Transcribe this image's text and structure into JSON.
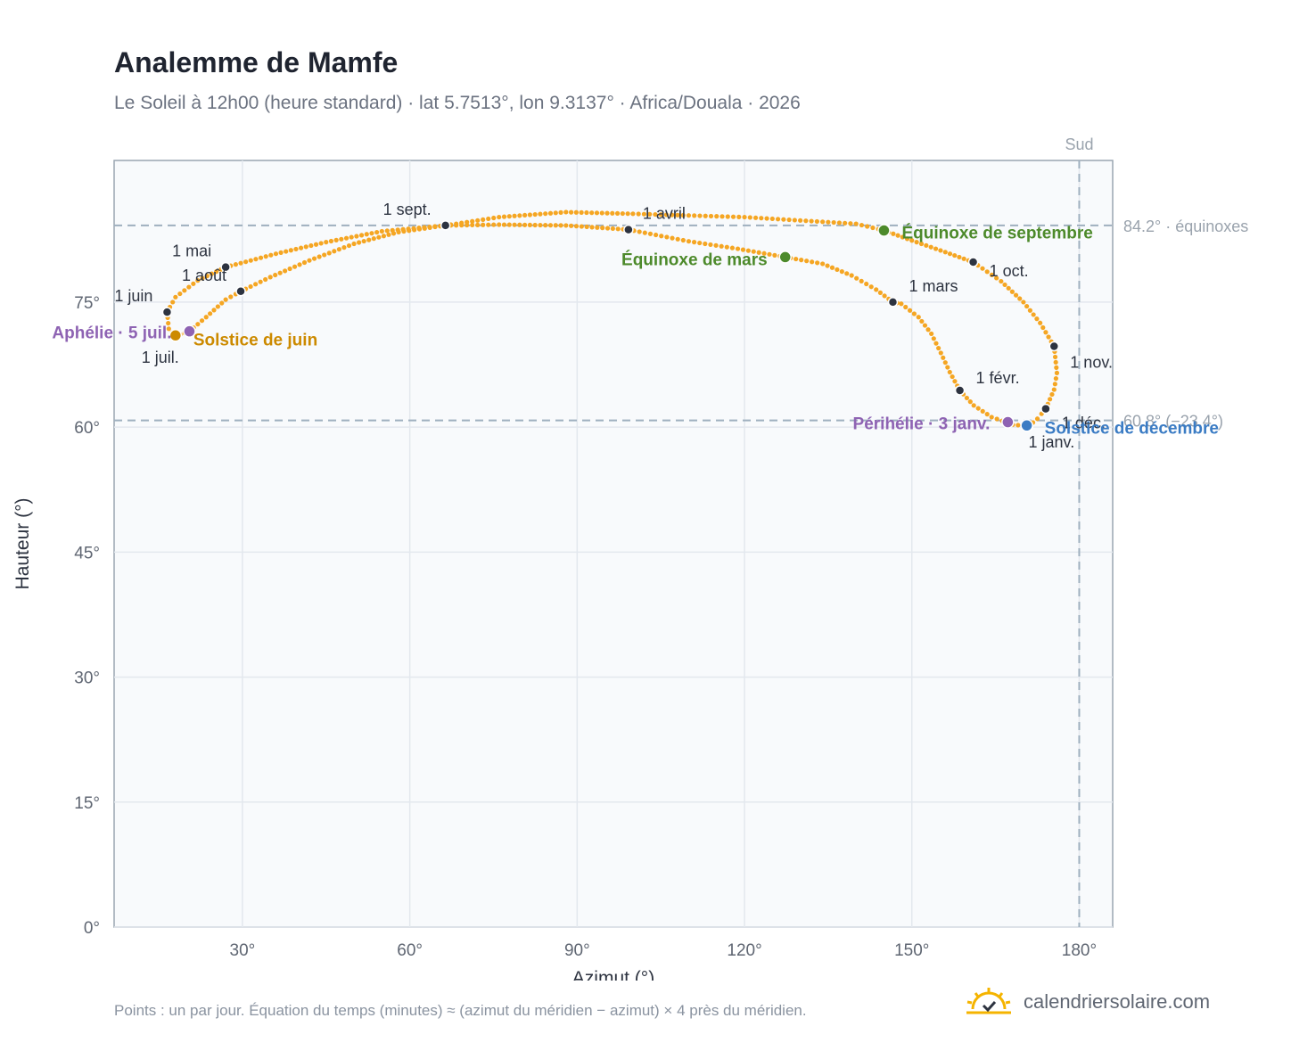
{
  "title": "Analemme de Mamfe",
  "subtitle": "Le Soleil à 12h00 (heure standard) · lat 5.7513°, lon 9.3137° · Africa/Douala · 2026",
  "footnote": "Points : un par jour. Équation du temps (minutes) ≈ (azimut du méridien − azimut) × 4 près du méridien.",
  "brand": {
    "name": "calendriersolaire.com",
    "logo_icon": "sun-check-icon"
  },
  "colors": {
    "curve": "#f5a623",
    "month": "#2d3340",
    "equinox": "#4d8a2b",
    "june": "#cc8a00",
    "december": "#3b7cc4",
    "apsis": "#8e63b3",
    "guide": "#9fb0bf",
    "grid": "#e3e8ee",
    "plot_bg": "#f8fafc"
  },
  "chart_data": {
    "type": "scatter",
    "xlabel": "Azimut (°)",
    "ylabel": "Hauteur (°)",
    "xlim": [
      7,
      186
    ],
    "ylim": [
      0,
      92
    ],
    "x_ticks": [
      30,
      60,
      90,
      120,
      150,
      180
    ],
    "x_tick_labels": [
      "30°",
      "60°",
      "90°",
      "120°",
      "150°",
      "180°"
    ],
    "y_ticks": [
      0,
      15,
      30,
      45,
      60,
      75
    ],
    "y_tick_labels": [
      "0°",
      "15°",
      "30°",
      "45°",
      "60°",
      "75°"
    ],
    "grid": true,
    "south_line": {
      "azimuth": 180,
      "label": "Sud"
    },
    "h_guides": [
      {
        "y": 84.2,
        "label": "84.2° · équinoxes"
      },
      {
        "y": 60.8,
        "label": "60.8° (−23.4°)"
      }
    ],
    "series": [
      {
        "style": "daily-points",
        "points": [
          [
            170.9,
            60.1
          ],
          [
            168.1,
            60.3
          ],
          [
            164.3,
            61.2
          ],
          [
            161.1,
            62.6
          ],
          [
            158.6,
            64.4
          ],
          [
            156.8,
            66.6
          ],
          [
            155.2,
            68.9
          ],
          [
            153.5,
            71.2
          ],
          [
            151.2,
            73.2
          ],
          [
            148.1,
            74.8
          ],
          [
            146.6,
            75.0
          ],
          [
            143.6,
            76.5
          ],
          [
            139.2,
            78.2
          ],
          [
            134.0,
            79.6
          ],
          [
            127.3,
            80.4
          ],
          [
            118.8,
            81.4
          ],
          [
            110.0,
            82.3
          ],
          [
            99.2,
            83.7
          ],
          [
            88.0,
            84.2
          ],
          [
            76.0,
            84.3
          ],
          [
            66.4,
            84.2
          ],
          [
            55.0,
            83.5
          ],
          [
            45.0,
            82.2
          ],
          [
            36.0,
            80.8
          ],
          [
            27.0,
            79.2
          ],
          [
            22.0,
            77.6
          ],
          [
            18.0,
            75.6
          ],
          [
            16.5,
            73.8
          ],
          [
            16.8,
            71.8
          ],
          [
            18.0,
            70.9
          ],
          [
            20.5,
            71.5
          ],
          [
            23.5,
            73.2
          ],
          [
            27.0,
            75.3
          ],
          [
            29.7,
            76.3
          ],
          [
            35.0,
            78.0
          ],
          [
            42.0,
            80.0
          ],
          [
            50.0,
            82.0
          ],
          [
            58.0,
            83.4
          ],
          [
            66.4,
            84.2
          ],
          [
            76.0,
            85.2
          ],
          [
            88.0,
            85.8
          ],
          [
            100.0,
            85.6
          ],
          [
            110.0,
            85.4
          ],
          [
            120.0,
            85.2
          ],
          [
            130.0,
            84.8
          ],
          [
            140.0,
            84.4
          ],
          [
            145.0,
            83.6
          ],
          [
            150.0,
            82.4
          ],
          [
            156.0,
            81.0
          ],
          [
            161.0,
            79.8
          ],
          [
            166.0,
            77.5
          ],
          [
            170.0,
            75.0
          ],
          [
            173.0,
            72.5
          ],
          [
            175.5,
            69.7
          ],
          [
            176.0,
            66.5
          ],
          [
            175.5,
            64.5
          ],
          [
            174.0,
            62.2
          ],
          [
            172.5,
            61.0
          ],
          [
            170.9,
            60.1
          ]
        ]
      }
    ],
    "month_markers": [
      {
        "label": "1 janv.",
        "x": 170.9,
        "y": 60.1
      },
      {
        "label": "1 févr.",
        "x": 158.6,
        "y": 64.4
      },
      {
        "label": "1 mars",
        "x": 146.6,
        "y": 75.0
      },
      {
        "label": "1 avril",
        "x": 99.2,
        "y": 83.7
      },
      {
        "label": "1 mai",
        "x": 27.0,
        "y": 79.2
      },
      {
        "label": "1 juin",
        "x": 16.5,
        "y": 73.8
      },
      {
        "label": "1 juil.",
        "x": 18.0,
        "y": 70.9
      },
      {
        "label": "1 août",
        "x": 29.7,
        "y": 76.3
      },
      {
        "label": "1 sept.",
        "x": 66.4,
        "y": 84.2
      },
      {
        "label": "1 oct.",
        "x": 161.0,
        "y": 79.8
      },
      {
        "label": "1 nov.",
        "x": 175.5,
        "y": 69.7
      },
      {
        "label": "1 déc.",
        "x": 174.0,
        "y": 62.2
      }
    ],
    "events": [
      {
        "label": "Équinoxe de mars",
        "x": 127.3,
        "y": 80.4,
        "kind": "equinox"
      },
      {
        "label": "Équinoxe de septembre",
        "x": 145.0,
        "y": 83.6,
        "kind": "equinox"
      },
      {
        "label": "Solstice de juin",
        "x": 18.0,
        "y": 71.0,
        "kind": "june"
      },
      {
        "label": "Solstice de décembre",
        "x": 170.6,
        "y": 60.2,
        "kind": "december"
      },
      {
        "label": "Aphélie · 5 juil.",
        "x": 20.5,
        "y": 71.5,
        "kind": "apsis"
      },
      {
        "label": "Périhélie · 3 janv.",
        "x": 167.2,
        "y": 60.6,
        "kind": "apsis"
      }
    ]
  }
}
